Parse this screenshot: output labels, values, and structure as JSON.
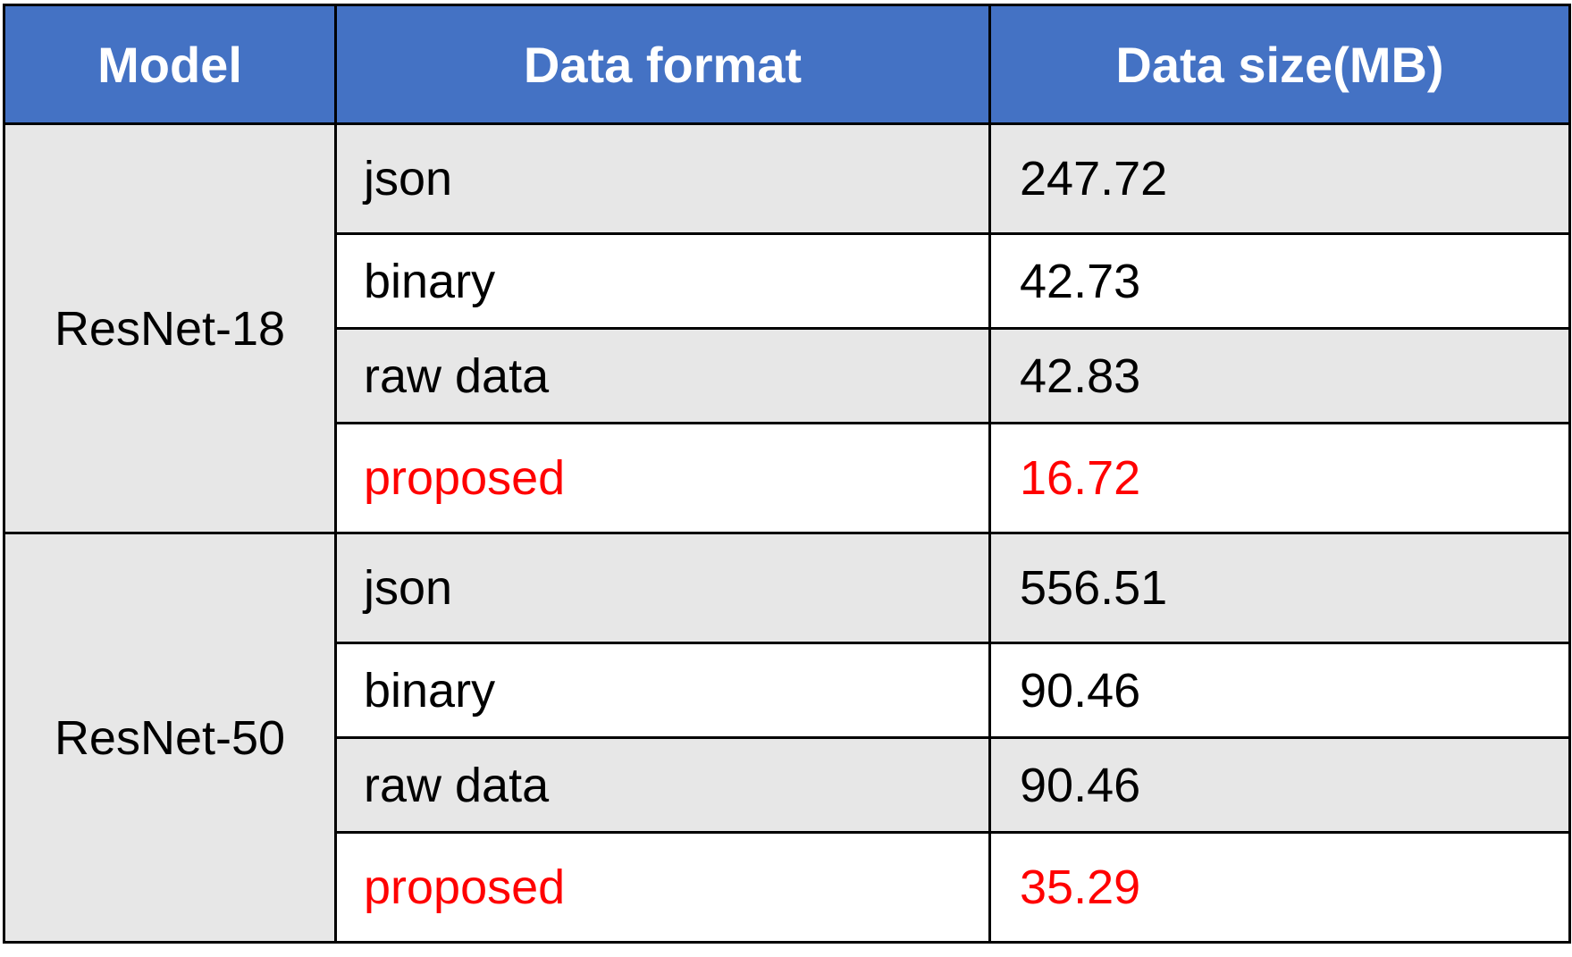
{
  "table": {
    "headers": [
      "Model",
      "Data format",
      "Data size(MB)"
    ],
    "highlight_color": "#ff0000",
    "header_color": "#4472c4",
    "groups": [
      {
        "model": "ResNet-18",
        "rows": [
          {
            "format": "json",
            "size": "247.72",
            "highlight": false
          },
          {
            "format": "binary",
            "size": "42.73",
            "highlight": false
          },
          {
            "format": "raw data",
            "size": "42.83",
            "highlight": false
          },
          {
            "format": "proposed",
            "size": "16.72",
            "highlight": true
          }
        ]
      },
      {
        "model": "ResNet-50",
        "rows": [
          {
            "format": "json",
            "size": "556.51",
            "highlight": false
          },
          {
            "format": "binary",
            "size": "90.46",
            "highlight": false
          },
          {
            "format": "raw data",
            "size": "90.46",
            "highlight": false
          },
          {
            "format": "proposed",
            "size": "35.29",
            "highlight": true
          }
        ]
      }
    ]
  }
}
